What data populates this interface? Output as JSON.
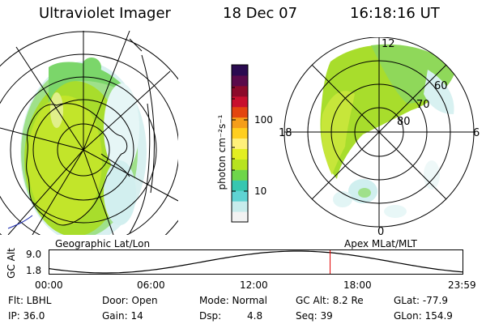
{
  "header": {
    "instrument": "Ultraviolet Imager",
    "date": "18 Dec 07",
    "time": "16:18:16 UT"
  },
  "left_map": {
    "label": "Geographic Lat/Lon"
  },
  "right_map": {
    "label": "Apex MLat/MLT",
    "mlt_labels": [
      "12",
      "18",
      "6",
      "0"
    ],
    "lat_labels": [
      "60",
      "70",
      "80"
    ]
  },
  "colorbar": {
    "title": "photon cm^-2 s^-1",
    "title_display": "photon cm⁻²s⁻¹",
    "tick_labels": [
      "100",
      "10"
    ],
    "scale": "log",
    "colors": [
      "#f2f2f2",
      "#c7ecec",
      "#5fd3d3",
      "#36c7b0",
      "#6ed64a",
      "#b7e31f",
      "#e3ee21",
      "#fff07a",
      "#ffcf1f",
      "#f59e1a",
      "#e3450f",
      "#c8102e",
      "#8c0a2a",
      "#5a0a4a",
      "#2a0a50"
    ]
  },
  "altitude_plot": {
    "ylabel": "GC Alt",
    "y_ticks": [
      "9.0",
      "1.8"
    ],
    "x_ticks": [
      "00:00",
      "06:00",
      "12:00",
      "18:00",
      "23:59"
    ],
    "current_time_hours": 16.3,
    "marker_color": "#e00000"
  },
  "info": {
    "filter": "Flt: LBHL",
    "ip": "IP: 36.0",
    "door": "Door: Open",
    "gain": "Gain: 14",
    "mode": "Mode: Normal",
    "dsp_label": "Dsp:",
    "dsp_value": "4.8",
    "gc_alt": "GC Alt: 8.2 Re",
    "seq": "Seq: 39",
    "glat": "GLat: -77.9",
    "glon": "GLon: 154.9"
  }
}
